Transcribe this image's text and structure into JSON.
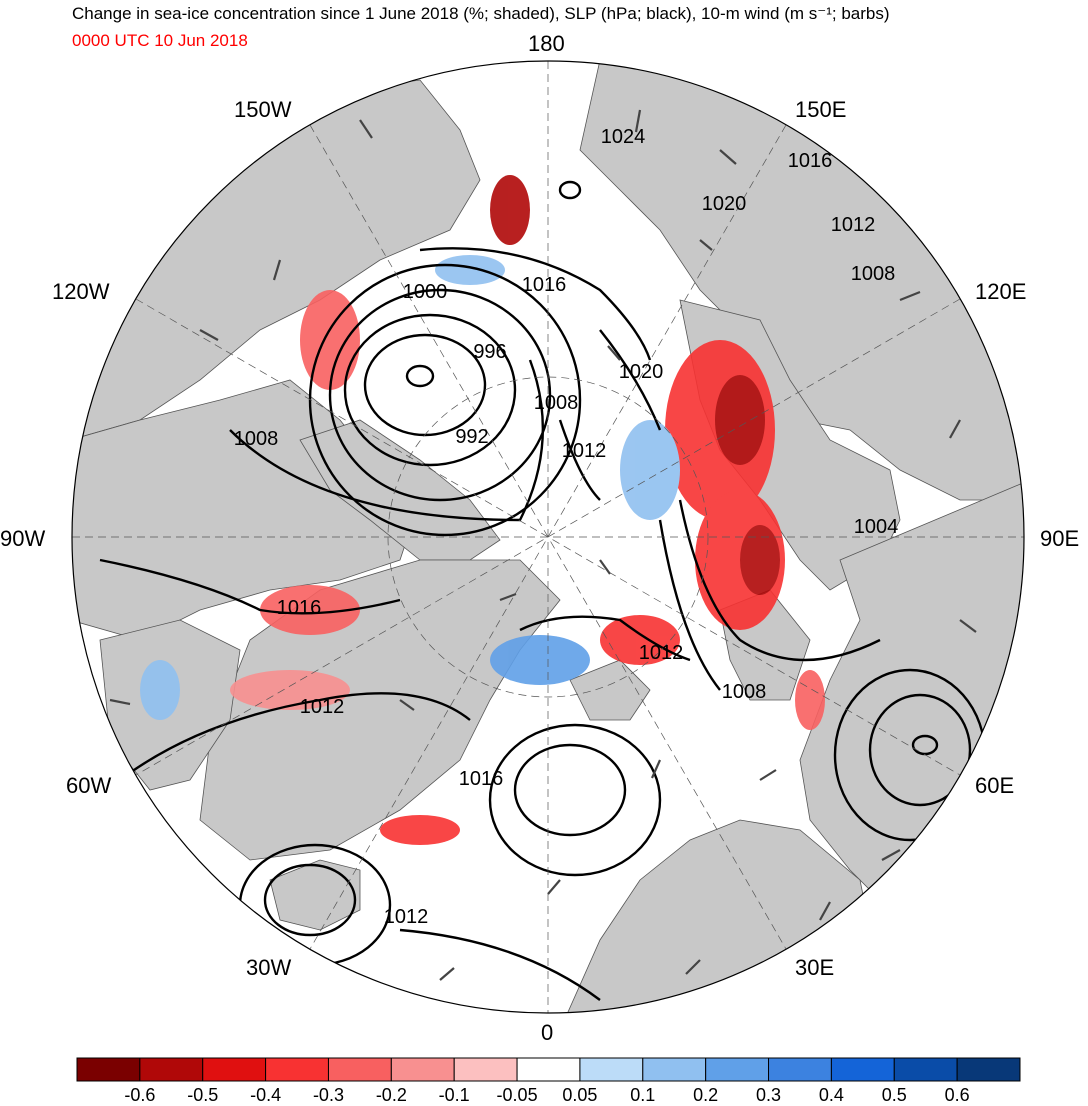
{
  "title": "Change in sea-ice concentration since 1 June 2018 (%; shaded), SLP (hPa; black), 10-m wind (m s⁻¹; barbs)",
  "subtitle": "0000 UTC 10 Jun 2018",
  "longitude_labels": {
    "lon_180": "180",
    "lon_150e": "150E",
    "lon_120e": "120E",
    "lon_90e": "90E",
    "lon_60e": "60E",
    "lon_30e": "30E",
    "lon_0": "0",
    "lon_30w": "30W",
    "lon_60w": "60W",
    "lon_90w": "90W",
    "lon_120w": "120W",
    "lon_150w": "150W"
  },
  "slp_contour_labels": [
    "1024",
    "1016",
    "1020",
    "1012",
    "1008",
    "1000",
    "996",
    "1016",
    "1020",
    "1008",
    "992",
    "1012",
    "1008",
    "1004",
    "1016",
    "1012",
    "1012",
    "1008",
    "1016",
    "1012"
  ],
  "colorbar": {
    "labels": [
      "-0.6",
      "-0.5",
      "-0.4",
      "-0.3",
      "-0.2",
      "-0.1",
      "-0.05",
      "0.05",
      "0.1",
      "0.2",
      "0.3",
      "0.4",
      "0.5",
      "0.6"
    ],
    "colors": [
      "#7a0000",
      "#b00808",
      "#e01010",
      "#f83232",
      "#f86060",
      "#f89090",
      "#fcc0c0",
      "#ffffff",
      "#bcdcf8",
      "#90c0f0",
      "#60a0e8",
      "#3c82e0",
      "#1464d8",
      "#0a4ca8",
      "#083878"
    ]
  },
  "colors": {
    "land": "#c8c8c8",
    "ocean": "#ffffff",
    "contour": "#000000",
    "ice_loss": "#e01010",
    "ice_gain": "#60a0e8"
  }
}
